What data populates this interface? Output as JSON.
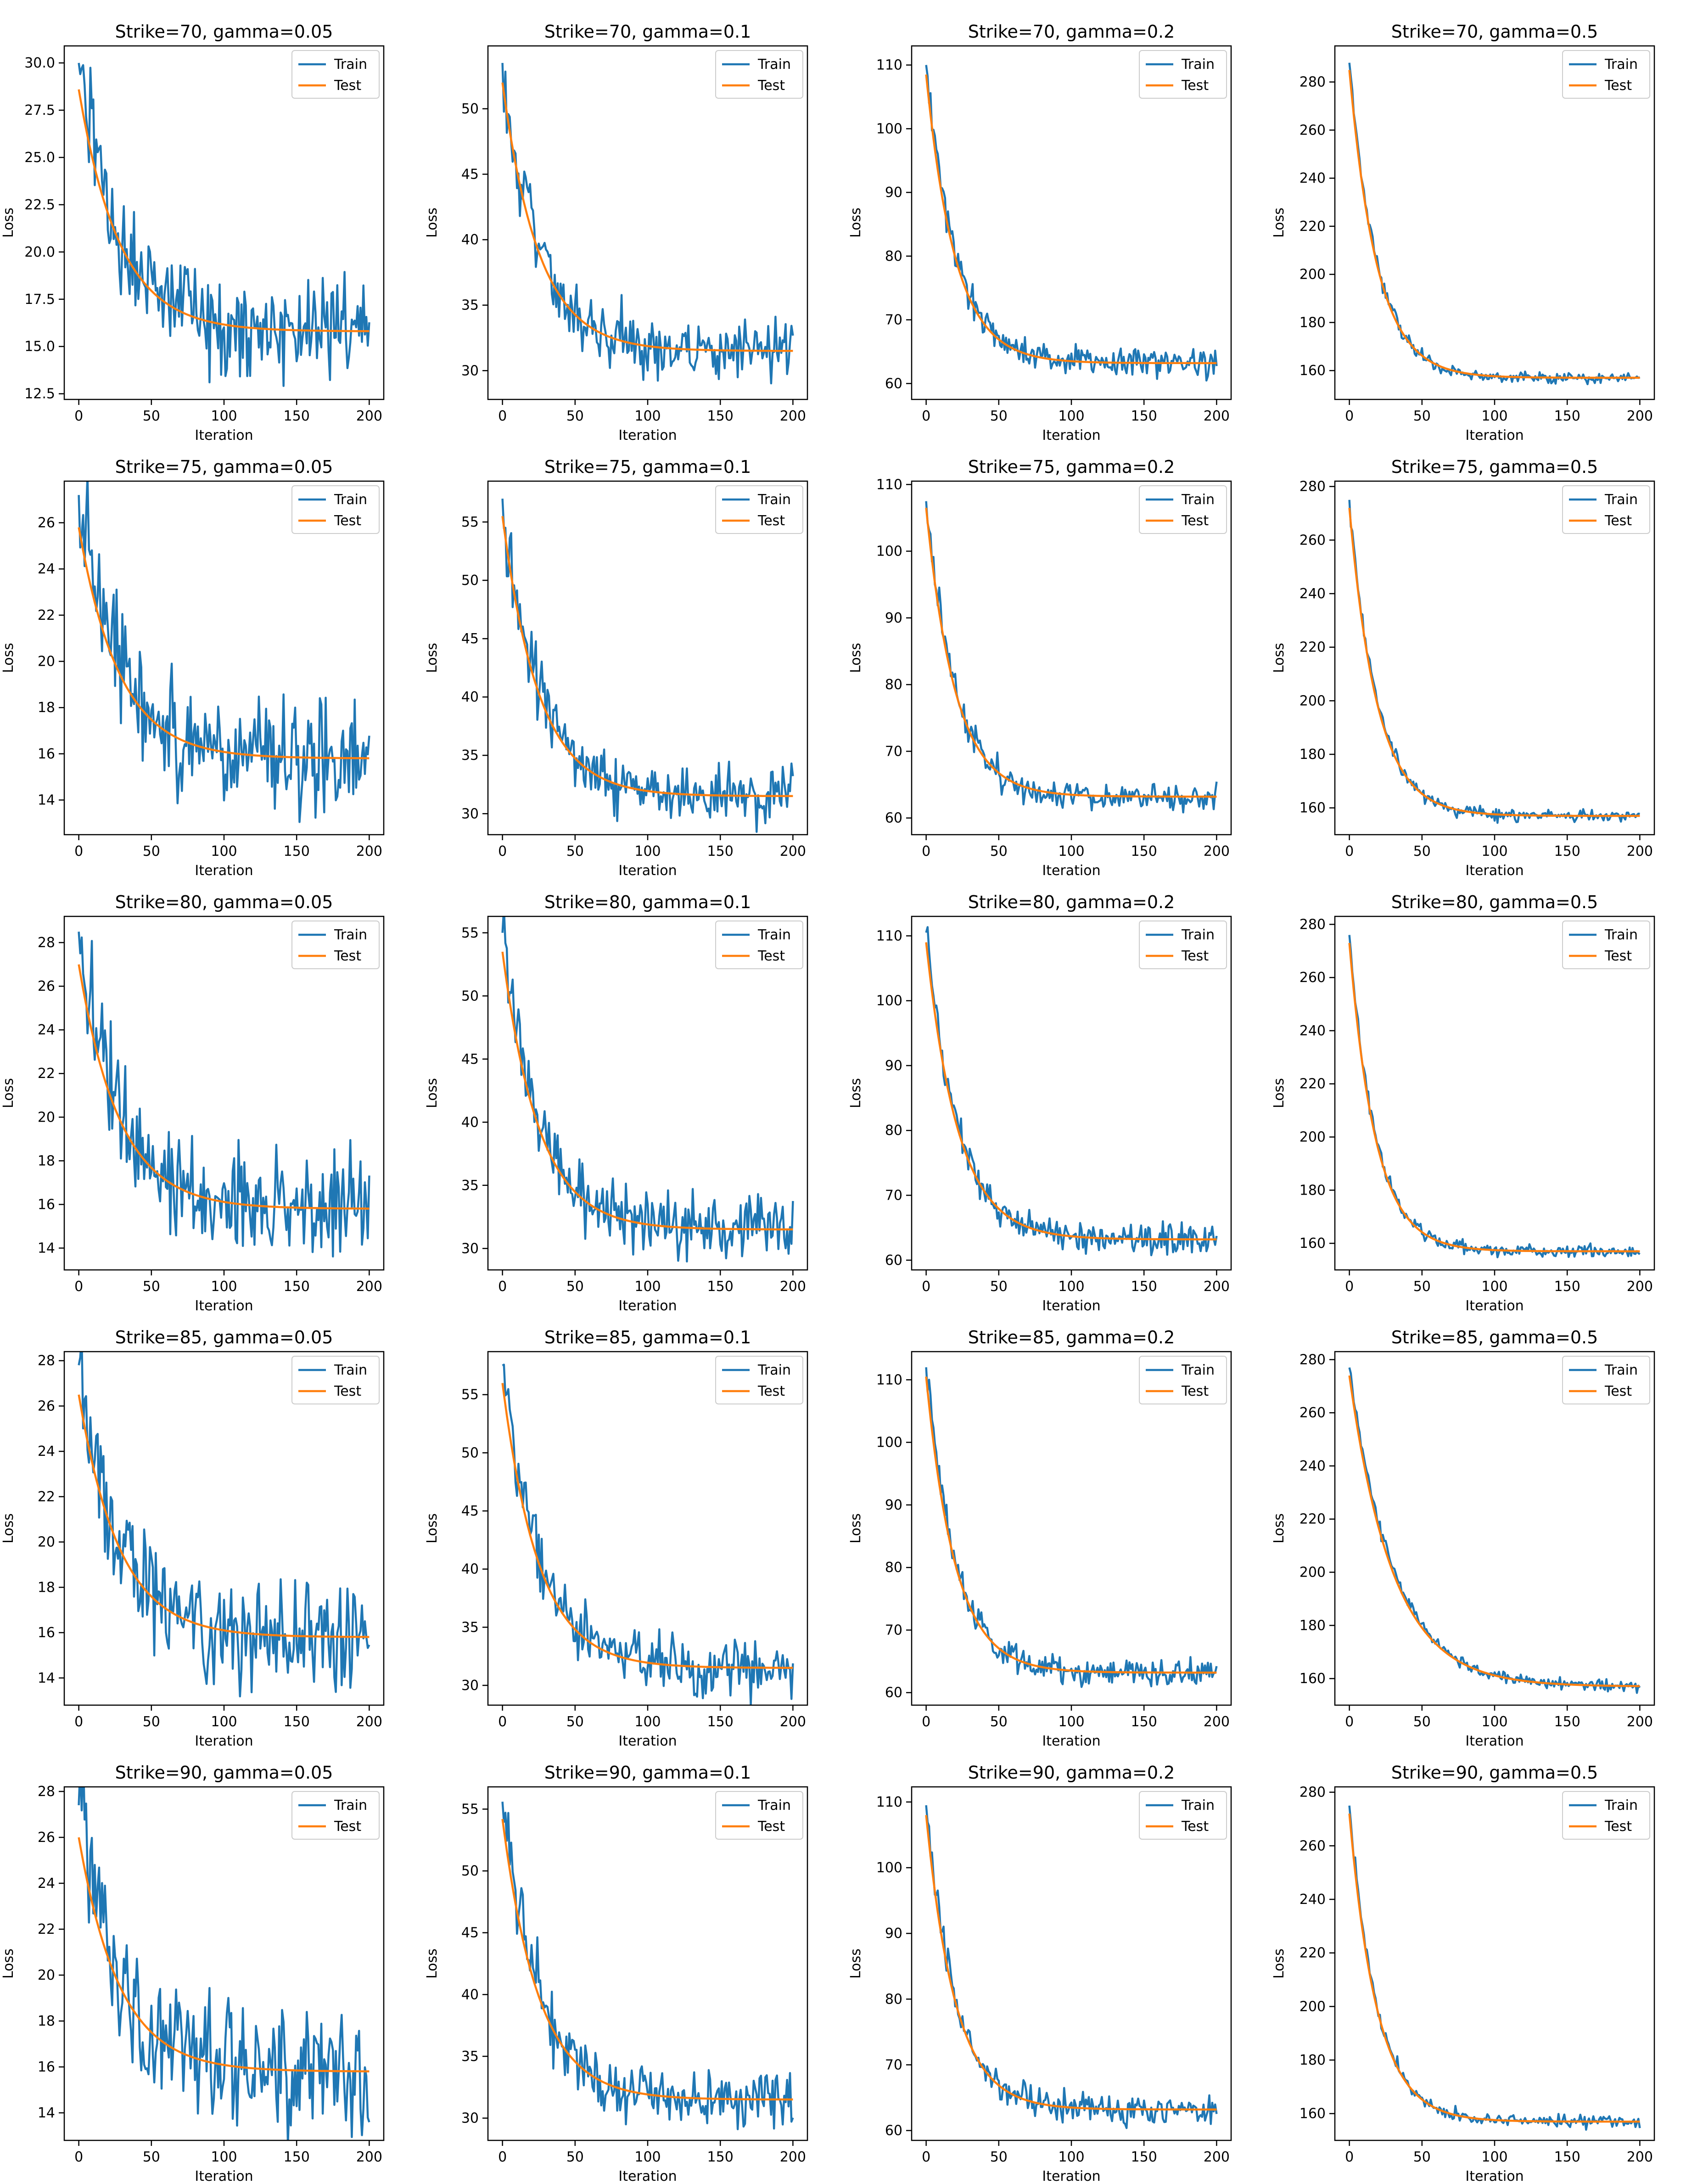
{
  "figure": {
    "rows": 5,
    "cols": 4,
    "legend_location": "upper right",
    "colors": {
      "train": "#1f77b4",
      "test": "#ff7f0e",
      "axes": "#000000",
      "background": "#ffffff"
    }
  },
  "chart_data": [
    {
      "type": "line",
      "title": "Strike=70, gamma=0.05",
      "xlabel": "Iteration",
      "ylabel": "Loss",
      "xlim": [
        -10,
        210
      ],
      "ylim": [
        12.2,
        30.9
      ],
      "xticks": [
        0,
        50,
        100,
        150,
        200
      ],
      "yticks": [
        12.5,
        15.0,
        17.5,
        20.0,
        22.5,
        25.0,
        27.5,
        30.0
      ],
      "ytick_labels": [
        "12.5",
        "15.0",
        "17.5",
        "20.0",
        "22.5",
        "25.0",
        "27.5",
        "30.0"
      ],
      "legend": [
        "Train",
        "Test"
      ],
      "series": [
        {
          "name": "Train",
          "start": 30.0,
          "floor": 15.8,
          "tau": 28,
          "noise": 1.3
        },
        {
          "name": "Test",
          "start": 28.6,
          "floor": 15.8,
          "tau": 28
        }
      ]
    },
    {
      "type": "line",
      "title": "Strike=70, gamma=0.1",
      "xlabel": "Iteration",
      "ylabel": "Loss",
      "xlim": [
        -10,
        210
      ],
      "ylim": [
        27.8,
        54.8
      ],
      "xticks": [
        0,
        50,
        100,
        150,
        200
      ],
      "yticks": [
        30,
        35,
        40,
        45,
        50
      ],
      "ytick_labels": [
        "30",
        "35",
        "40",
        "45",
        "50"
      ],
      "legend": [
        "Train",
        "Test"
      ],
      "series": [
        {
          "name": "Train",
          "start": 53.5,
          "floor": 31.5,
          "tau": 25,
          "noise": 1.2
        },
        {
          "name": "Test",
          "start": 52.0,
          "floor": 31.5,
          "tau": 25
        }
      ]
    },
    {
      "type": "line",
      "title": "Strike=70, gamma=0.2",
      "xlabel": "Iteration",
      "ylabel": "Loss",
      "xlim": [
        -10,
        210
      ],
      "ylim": [
        57.5,
        113
      ],
      "xticks": [
        0,
        50,
        100,
        150,
        200
      ],
      "yticks": [
        60,
        70,
        80,
        90,
        100,
        110
      ],
      "ytick_labels": [
        "60",
        "70",
        "80",
        "90",
        "100",
        "110"
      ],
      "legend": [
        "Train",
        "Test"
      ],
      "series": [
        {
          "name": "Train",
          "start": 110.0,
          "floor": 63.2,
          "tau": 20,
          "noise": 1.1
        },
        {
          "name": "Test",
          "start": 108.5,
          "floor": 63.2,
          "tau": 20
        }
      ]
    },
    {
      "type": "line",
      "title": "Strike=70, gamma=0.5",
      "xlabel": "Iteration",
      "ylabel": "Loss",
      "xlim": [
        -10,
        210
      ],
      "ylim": [
        148,
        295
      ],
      "xticks": [
        0,
        50,
        100,
        150,
        200
      ],
      "yticks": [
        160,
        180,
        200,
        220,
        240,
        260,
        280
      ],
      "ytick_labels": [
        "160",
        "180",
        "200",
        "220",
        "240",
        "260",
        "280"
      ],
      "legend": [
        "Train",
        "Test"
      ],
      "series": [
        {
          "name": "Train",
          "start": 288,
          "floor": 157,
          "tau": 19,
          "noise": 1.2
        },
        {
          "name": "Test",
          "start": 285,
          "floor": 157,
          "tau": 19
        }
      ]
    },
    {
      "type": "line",
      "title": "Strike=75, gamma=0.05",
      "xlabel": "Iteration",
      "ylabel": "Loss",
      "xlim": [
        -10,
        210
      ],
      "ylim": [
        12.5,
        27.8
      ],
      "xticks": [
        0,
        50,
        100,
        150,
        200
      ],
      "yticks": [
        14,
        16,
        18,
        20,
        22,
        24,
        26
      ],
      "ytick_labels": [
        "14",
        "16",
        "18",
        "20",
        "22",
        "24",
        "26"
      ],
      "legend": [
        "Train",
        "Test"
      ],
      "series": [
        {
          "name": "Train",
          "start": 27.2,
          "floor": 15.8,
          "tau": 28,
          "noise": 1.2
        },
        {
          "name": "Test",
          "start": 25.8,
          "floor": 15.8,
          "tau": 28
        }
      ]
    },
    {
      "type": "line",
      "title": "Strike=75, gamma=0.1",
      "xlabel": "Iteration",
      "ylabel": "Loss",
      "xlim": [
        -10,
        210
      ],
      "ylim": [
        28.2,
        58.5
      ],
      "xticks": [
        0,
        50,
        100,
        150,
        200
      ],
      "yticks": [
        30,
        35,
        40,
        45,
        50,
        55
      ],
      "ytick_labels": [
        "30",
        "35",
        "40",
        "45",
        "50",
        "55"
      ],
      "legend": [
        "Train",
        "Test"
      ],
      "series": [
        {
          "name": "Train",
          "start": 57.0,
          "floor": 31.5,
          "tau": 25,
          "noise": 1.2
        },
        {
          "name": "Test",
          "start": 55.5,
          "floor": 31.5,
          "tau": 25
        }
      ]
    },
    {
      "type": "line",
      "title": "Strike=75, gamma=0.2",
      "xlabel": "Iteration",
      "ylabel": "Loss",
      "xlim": [
        -10,
        210
      ],
      "ylim": [
        57.5,
        110.5
      ],
      "xticks": [
        0,
        50,
        100,
        150,
        200
      ],
      "yticks": [
        60,
        70,
        80,
        90,
        100,
        110
      ],
      "ytick_labels": [
        "60",
        "70",
        "80",
        "90",
        "100",
        "110"
      ],
      "legend": [
        "Train",
        "Test"
      ],
      "series": [
        {
          "name": "Train",
          "start": 107.5,
          "floor": 63.2,
          "tau": 20,
          "noise": 1.1
        },
        {
          "name": "Test",
          "start": 106.5,
          "floor": 63.2,
          "tau": 20
        }
      ]
    },
    {
      "type": "line",
      "title": "Strike=75, gamma=0.5",
      "xlabel": "Iteration",
      "ylabel": "Loss",
      "xlim": [
        -10,
        210
      ],
      "ylim": [
        150,
        282
      ],
      "xticks": [
        0,
        50,
        100,
        150,
        200
      ],
      "yticks": [
        160,
        180,
        200,
        220,
        240,
        260,
        280
      ],
      "ytick_labels": [
        "160",
        "180",
        "200",
        "220",
        "240",
        "260",
        "280"
      ],
      "legend": [
        "Train",
        "Test"
      ],
      "series": [
        {
          "name": "Train",
          "start": 275,
          "floor": 157,
          "tau": 19,
          "noise": 1.2
        },
        {
          "name": "Test",
          "start": 272,
          "floor": 157,
          "tau": 19
        }
      ]
    },
    {
      "type": "line",
      "title": "Strike=80, gamma=0.05",
      "xlabel": "Iteration",
      "ylabel": "Loss",
      "xlim": [
        -10,
        210
      ],
      "ylim": [
        13.0,
        29.2
      ],
      "xticks": [
        0,
        50,
        100,
        150,
        200
      ],
      "yticks": [
        14,
        16,
        18,
        20,
        22,
        24,
        26,
        28
      ],
      "ytick_labels": [
        "14",
        "16",
        "18",
        "20",
        "22",
        "24",
        "26",
        "28"
      ],
      "legend": [
        "Train",
        "Test"
      ],
      "series": [
        {
          "name": "Train",
          "start": 28.5,
          "floor": 15.8,
          "tau": 28,
          "noise": 1.2
        },
        {
          "name": "Test",
          "start": 27.0,
          "floor": 15.8,
          "tau": 28
        }
      ]
    },
    {
      "type": "line",
      "title": "Strike=80, gamma=0.1",
      "xlabel": "Iteration",
      "ylabel": "Loss",
      "xlim": [
        -10,
        210
      ],
      "ylim": [
        28.3,
        56.3
      ],
      "xticks": [
        0,
        50,
        100,
        150,
        200
      ],
      "yticks": [
        30,
        35,
        40,
        45,
        50,
        55
      ],
      "ytick_labels": [
        "30",
        "35",
        "40",
        "45",
        "50",
        "55"
      ],
      "legend": [
        "Train",
        "Test"
      ],
      "series": [
        {
          "name": "Train",
          "start": 55.0,
          "floor": 31.5,
          "tau": 25,
          "noise": 1.2
        },
        {
          "name": "Test",
          "start": 53.5,
          "floor": 31.5,
          "tau": 25
        }
      ]
    },
    {
      "type": "line",
      "title": "Strike=80, gamma=0.2",
      "xlabel": "Iteration",
      "ylabel": "Loss",
      "xlim": [
        -10,
        210
      ],
      "ylim": [
        58.5,
        113
      ],
      "xticks": [
        0,
        50,
        100,
        150,
        200
      ],
      "yticks": [
        60,
        70,
        80,
        90,
        100,
        110
      ],
      "ytick_labels": [
        "60",
        "70",
        "80",
        "90",
        "100",
        "110"
      ],
      "legend": [
        "Train",
        "Test"
      ],
      "series": [
        {
          "name": "Train",
          "start": 110.5,
          "floor": 63.2,
          "tau": 22,
          "noise": 1.1
        },
        {
          "name": "Test",
          "start": 109.0,
          "floor": 63.2,
          "tau": 22
        }
      ]
    },
    {
      "type": "line",
      "title": "Strike=80, gamma=0.5",
      "xlabel": "Iteration",
      "ylabel": "Loss",
      "xlim": [
        -10,
        210
      ],
      "ylim": [
        150,
        283
      ],
      "xticks": [
        0,
        50,
        100,
        150,
        200
      ],
      "yticks": [
        160,
        180,
        200,
        220,
        240,
        260,
        280
      ],
      "ytick_labels": [
        "160",
        "180",
        "200",
        "220",
        "240",
        "260",
        "280"
      ],
      "legend": [
        "Train",
        "Test"
      ],
      "series": [
        {
          "name": "Train",
          "start": 276,
          "floor": 157,
          "tau": 18,
          "noise": 1.2
        },
        {
          "name": "Test",
          "start": 273,
          "floor": 157,
          "tau": 18
        }
      ]
    },
    {
      "type": "line",
      "title": "Strike=85, gamma=0.05",
      "xlabel": "Iteration",
      "ylabel": "Loss",
      "xlim": [
        -10,
        210
      ],
      "ylim": [
        12.8,
        28.4
      ],
      "xticks": [
        0,
        50,
        100,
        150,
        200
      ],
      "yticks": [
        14,
        16,
        18,
        20,
        22,
        24,
        26,
        28
      ],
      "ytick_labels": [
        "14",
        "16",
        "18",
        "20",
        "22",
        "24",
        "26",
        "28"
      ],
      "legend": [
        "Train",
        "Test"
      ],
      "series": [
        {
          "name": "Train",
          "start": 27.8,
          "floor": 15.8,
          "tau": 28,
          "noise": 1.2
        },
        {
          "name": "Test",
          "start": 26.5,
          "floor": 15.8,
          "tau": 28
        }
      ]
    },
    {
      "type": "line",
      "title": "Strike=85, gamma=0.1",
      "xlabel": "Iteration",
      "ylabel": "Loss",
      "xlim": [
        -10,
        210
      ],
      "ylim": [
        28.3,
        58.7
      ],
      "xticks": [
        0,
        50,
        100,
        150,
        200
      ],
      "yticks": [
        30,
        35,
        40,
        45,
        50,
        55
      ],
      "ytick_labels": [
        "30",
        "35",
        "40",
        "45",
        "50",
        "55"
      ],
      "legend": [
        "Train",
        "Test"
      ],
      "series": [
        {
          "name": "Train",
          "start": 57.5,
          "floor": 31.5,
          "tau": 25,
          "noise": 1.2
        },
        {
          "name": "Test",
          "start": 56.0,
          "floor": 31.5,
          "tau": 25
        }
      ]
    },
    {
      "type": "line",
      "title": "Strike=85, gamma=0.2",
      "xlabel": "Iteration",
      "ylabel": "Loss",
      "xlim": [
        -10,
        210
      ],
      "ylim": [
        58,
        114.5
      ],
      "xticks": [
        0,
        50,
        100,
        150,
        200
      ],
      "yticks": [
        60,
        70,
        80,
        90,
        100,
        110
      ],
      "ytick_labels": [
        "60",
        "70",
        "80",
        "90",
        "100",
        "110"
      ],
      "legend": [
        "Train",
        "Test"
      ],
      "series": [
        {
          "name": "Train",
          "start": 112,
          "floor": 63.2,
          "tau": 20,
          "noise": 1.1
        },
        {
          "name": "Test",
          "start": 110.5,
          "floor": 63.2,
          "tau": 20
        }
      ]
    },
    {
      "type": "line",
      "title": "Strike=85, gamma=0.5",
      "xlabel": "Iteration",
      "ylabel": "Loss",
      "xlim": [
        -10,
        210
      ],
      "ylim": [
        150,
        283
      ],
      "xticks": [
        0,
        50,
        100,
        150,
        200
      ],
      "yticks": [
        160,
        180,
        200,
        220,
        240,
        260,
        280
      ],
      "ytick_labels": [
        "160",
        "180",
        "200",
        "220",
        "240",
        "260",
        "280"
      ],
      "legend": [
        "Train",
        "Test"
      ],
      "series": [
        {
          "name": "Train",
          "start": 277,
          "floor": 157,
          "tau": 30,
          "noise": 1.2
        },
        {
          "name": "Test",
          "start": 274,
          "floor": 157,
          "tau": 30
        }
      ]
    },
    {
      "type": "line",
      "title": "Strike=90, gamma=0.05",
      "xlabel": "Iteration",
      "ylabel": "Loss",
      "xlim": [
        -10,
        210
      ],
      "ylim": [
        12.8,
        28.2
      ],
      "xticks": [
        0,
        50,
        100,
        150,
        200
      ],
      "yticks": [
        14,
        16,
        18,
        20,
        22,
        24,
        26,
        28
      ],
      "ytick_labels": [
        "14",
        "16",
        "18",
        "20",
        "22",
        "24",
        "26",
        "28"
      ],
      "legend": [
        "Train",
        "Test"
      ],
      "series": [
        {
          "name": "Train",
          "start": 27.4,
          "floor": 15.8,
          "tau": 28,
          "noise": 1.2
        },
        {
          "name": "Test",
          "start": 26.0,
          "floor": 15.8,
          "tau": 28
        }
      ]
    },
    {
      "type": "line",
      "title": "Strike=90, gamma=0.1",
      "xlabel": "Iteration",
      "ylabel": "Loss",
      "xlim": [
        -10,
        210
      ],
      "ylim": [
        28.2,
        56.8
      ],
      "xticks": [
        0,
        50,
        100,
        150,
        200
      ],
      "yticks": [
        30,
        35,
        40,
        45,
        50,
        55
      ],
      "ytick_labels": [
        "30",
        "35",
        "40",
        "45",
        "50",
        "55"
      ],
      "legend": [
        "Train",
        "Test"
      ],
      "series": [
        {
          "name": "Train",
          "start": 55.6,
          "floor": 31.5,
          "tau": 25,
          "noise": 1.2
        },
        {
          "name": "Test",
          "start": 54.2,
          "floor": 31.5,
          "tau": 25
        }
      ]
    },
    {
      "type": "line",
      "title": "Strike=90, gamma=0.2",
      "xlabel": "Iteration",
      "ylabel": "Loss",
      "xlim": [
        -10,
        210
      ],
      "ylim": [
        58.5,
        112.3
      ],
      "xticks": [
        0,
        50,
        100,
        150,
        200
      ],
      "yticks": [
        60,
        70,
        80,
        90,
        100,
        110
      ],
      "ytick_labels": [
        "60",
        "70",
        "80",
        "90",
        "100",
        "110"
      ],
      "legend": [
        "Train",
        "Test"
      ],
      "series": [
        {
          "name": "Train",
          "start": 109.5,
          "floor": 63.2,
          "tau": 20,
          "noise": 1.1
        },
        {
          "name": "Test",
          "start": 108.0,
          "floor": 63.2,
          "tau": 20
        }
      ]
    },
    {
      "type": "line",
      "title": "Strike=90, gamma=0.5",
      "xlabel": "Iteration",
      "ylabel": "Loss",
      "xlim": [
        -10,
        210
      ],
      "ylim": [
        150,
        282
      ],
      "xticks": [
        0,
        50,
        100,
        150,
        200
      ],
      "yticks": [
        160,
        180,
        200,
        220,
        240,
        260,
        280
      ],
      "ytick_labels": [
        "160",
        "180",
        "200",
        "220",
        "240",
        "260",
        "280"
      ],
      "legend": [
        "Train",
        "Test"
      ],
      "series": [
        {
          "name": "Train",
          "start": 275,
          "floor": 157,
          "tau": 19,
          "noise": 1.2
        },
        {
          "name": "Test",
          "start": 272,
          "floor": 157,
          "tau": 19
        }
      ]
    }
  ]
}
